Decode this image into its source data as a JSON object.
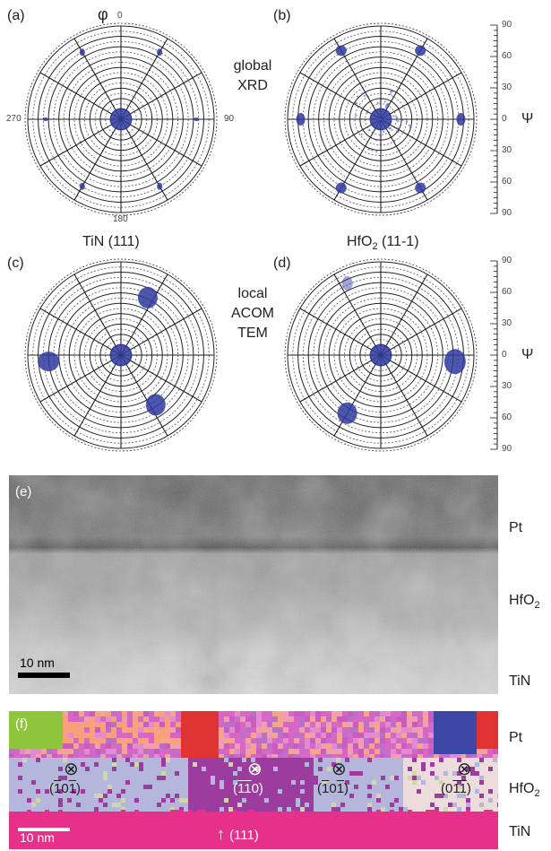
{
  "panels": {
    "a": "(a)",
    "b": "(b)",
    "c": "(c)",
    "d": "(d)",
    "e": "(e)",
    "f": "(f)"
  },
  "polar": {
    "phi": "φ",
    "angle_top": "0",
    "angle_right": "90",
    "angle_bottom": "180",
    "angle_left": "270"
  },
  "captions": {
    "global": "global",
    "xrd": "XRD",
    "local": "local",
    "acom": "ACOM",
    "tem": "TEM",
    "tin111": "TiN (111)",
    "hfo2_main": "HfO",
    "hfo2_sub": "2",
    "hfo2_idx": " (11-1)"
  },
  "psi_scale": {
    "label": "Ψ",
    "ticks": [
      "90",
      "60",
      "30",
      "0",
      "30",
      "60",
      "90"
    ]
  },
  "tem_image": {
    "scalebar": "10 nm",
    "layers": {
      "pt": "Pt",
      "hfo2": "HfO",
      "hfo2_sub": "2",
      "tin": "TiN"
    }
  },
  "orientation_map": {
    "scalebar": "10 nm",
    "layers": {
      "pt": "Pt",
      "hfo2": "HfO",
      "hfo2_sub": "2",
      "tin": "TiN"
    },
    "zone_symbol": "⊗",
    "grain_labels": [
      "(̅1 0 ̅1)",
      "(̅1̅1 0)",
      "(̅1 0 ̅1)",
      "(0 ̅1̅1)"
    ],
    "tin_arrow": "↑",
    "tin_label": "(111)",
    "colors": {
      "tin": "#e6308a",
      "hfo2_a": "#b4b6dc",
      "hfo2_b": "#9c3c9e",
      "hfo2_c": "#eddcdc",
      "pt_main": "#d965c3",
      "pt_red": "#e03434",
      "pt_green": "#8fc43c",
      "pt_blue": "#3d47a5"
    }
  }
}
